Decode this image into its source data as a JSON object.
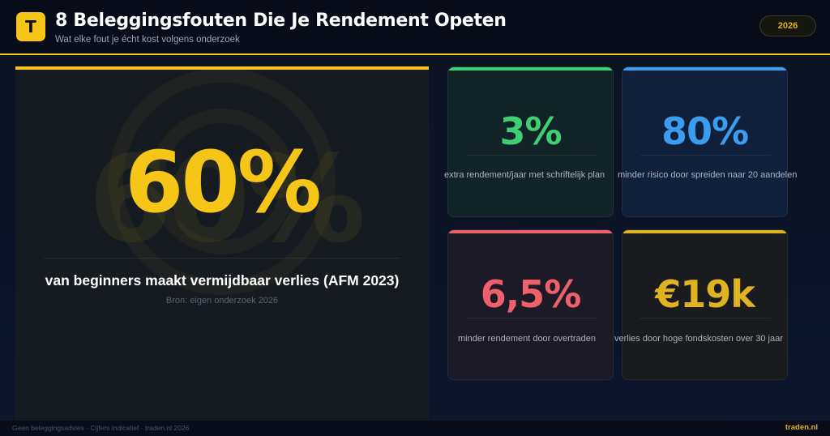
{
  "header": {
    "logo_letter": "T",
    "title": "8 Beleggingsfouten Die Je Rendement Opeten",
    "subtitle": "Wat elke fout je écht kost volgens onderzoek",
    "year": "2026"
  },
  "hero": {
    "value": "60%",
    "ghost_value": "60%",
    "label": "van beginners maakt vermijdbaar verlies (AFM 2023)",
    "source": "Bron: eigen onderzoek 2026",
    "accent": "#f5c518"
  },
  "stats": [
    {
      "value": "3%",
      "label": "extra rendement/jaar met schriftelijk plan",
      "accent": "#3ecf73"
    },
    {
      "value": "80%",
      "label": "minder risico door spreiden naar 20 aandelen",
      "accent": "#3b9cf0"
    },
    {
      "value": "6,5%",
      "label": "minder rendement door overtraden",
      "accent": "#f0606a"
    },
    {
      "value": "€19k",
      "label": "verlies door hoge fondskosten over 30 jaar",
      "accent": "#e0b320"
    }
  ],
  "footer": {
    "disclaimer": "Geen beleggingsadvies · Cijfers indicatief · traden.nl 2026",
    "brand": "traden.nl"
  }
}
